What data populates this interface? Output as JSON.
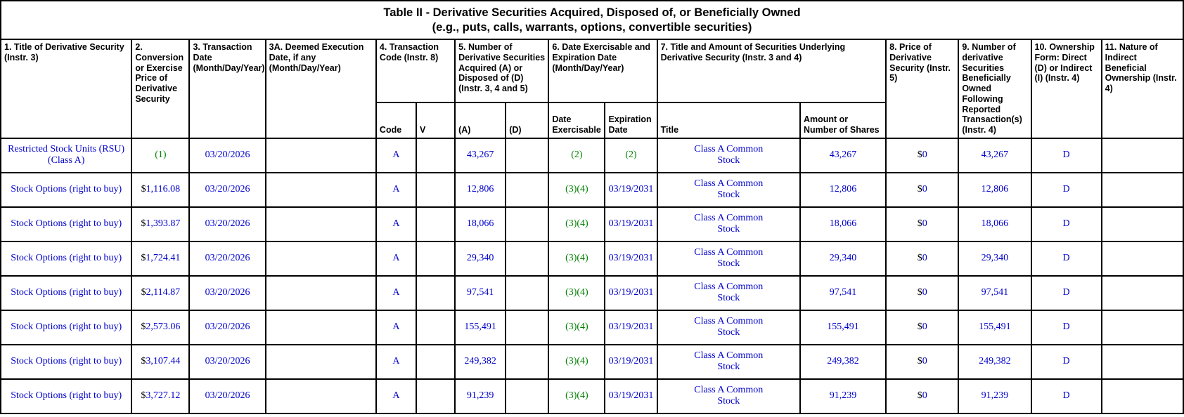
{
  "colors": {
    "data_blue": "#0000CC",
    "footnote_green": "#008000",
    "header_text": "#000000",
    "border": "#000000",
    "background": "#FFFFFF"
  },
  "table": {
    "title_line1": "Table II - Derivative Securities Acquired, Disposed of, or Beneficially Owned",
    "title_line2": "(e.g., puts, calls, warrants, options, convertible securities)",
    "headers": {
      "c1": "1. Title of Derivative Security (Instr. 3)",
      "c2": "2. Conversion or Exercise Price of Derivative Security",
      "c3": "3. Transaction Date (Month/Day/Year)",
      "c3a": "3A. Deemed Execution Date, if any (Month/Day/Year)",
      "c4": "4. Transaction Code (Instr. 8)",
      "c5": "5. Number of Derivative Securities Acquired (A) or Disposed of (D) (Instr. 3, 4 and 5)",
      "c6": "6. Date Exercisable and Expiration Date (Month/Day/Year)",
      "c7": "7. Title and Amount of Securities Underlying Derivative Security (Instr. 3 and 4)",
      "c8": "8. Price of Derivative Security (Instr. 5)",
      "c9": "9. Number of derivative Securities Beneficially Owned Following Reported Transaction(s) (Instr. 4)",
      "c10": "10. Ownership Form: Direct (D) or Indirect (I) (Instr. 4)",
      "c11": "11. Nature of Indirect Beneficial Ownership (Instr. 4)"
    },
    "sub_headers": {
      "code": "Code",
      "v": "V",
      "a": "(A)",
      "d": "(D)",
      "date_exercisable": "Date Exercisable",
      "expiration_date": "Expiration Date",
      "title": "Title",
      "amount": "Amount or Number of Shares"
    },
    "rows": [
      {
        "title": "Restricted Stock Units (RSU) (Class A)",
        "price_dollar": "",
        "price": "(1)",
        "price_cls": "green",
        "transaction_date": "03/20/2026",
        "deemed_execution_date": "",
        "code": "A",
        "v": "",
        "acquired": "43,267",
        "disposed": "",
        "date_exercisable": "(2)",
        "date_exercisable_cls": "green",
        "expiration_date": "(2)",
        "expiration_cls": "green",
        "underlying_title": "Class A Common Stock",
        "underlying_amount": "43,267",
        "derivative_price_dollar": "$",
        "derivative_price": "0",
        "owned_following": "43,267",
        "ownership_form": "D",
        "indirect_nature": ""
      },
      {
        "title": "Stock Options (right to buy)",
        "price_dollar": "$",
        "price": "1,116.08",
        "price_cls": "blue",
        "transaction_date": "03/20/2026",
        "deemed_execution_date": "",
        "code": "A",
        "v": "",
        "acquired": "12,806",
        "disposed": "",
        "date_exercisable": "(3)(4)",
        "date_exercisable_cls": "green",
        "expiration_date": "03/19/2031",
        "expiration_cls": "blue",
        "underlying_title": "Class A Common Stock",
        "underlying_amount": "12,806",
        "derivative_price_dollar": "$",
        "derivative_price": "0",
        "owned_following": "12,806",
        "ownership_form": "D",
        "indirect_nature": ""
      },
      {
        "title": "Stock Options (right to buy)",
        "price_dollar": "$",
        "price": "1,393.87",
        "price_cls": "blue",
        "transaction_date": "03/20/2026",
        "deemed_execution_date": "",
        "code": "A",
        "v": "",
        "acquired": "18,066",
        "disposed": "",
        "date_exercisable": "(3)(4)",
        "date_exercisable_cls": "green",
        "expiration_date": "03/19/2031",
        "expiration_cls": "blue",
        "underlying_title": "Class A Common Stock",
        "underlying_amount": "18,066",
        "derivative_price_dollar": "$",
        "derivative_price": "0",
        "owned_following": "18,066",
        "ownership_form": "D",
        "indirect_nature": ""
      },
      {
        "title": "Stock Options (right to buy)",
        "price_dollar": "$",
        "price": "1,724.41",
        "price_cls": "blue",
        "transaction_date": "03/20/2026",
        "deemed_execution_date": "",
        "code": "A",
        "v": "",
        "acquired": "29,340",
        "disposed": "",
        "date_exercisable": "(3)(4)",
        "date_exercisable_cls": "green",
        "expiration_date": "03/19/2031",
        "expiration_cls": "blue",
        "underlying_title": "Class A Common Stock",
        "underlying_amount": "29,340",
        "derivative_price_dollar": "$",
        "derivative_price": "0",
        "owned_following": "29,340",
        "ownership_form": "D",
        "indirect_nature": ""
      },
      {
        "title": "Stock Options (right to buy)",
        "price_dollar": "$",
        "price": "2,114.87",
        "price_cls": "blue",
        "transaction_date": "03/20/2026",
        "deemed_execution_date": "",
        "code": "A",
        "v": "",
        "acquired": "97,541",
        "disposed": "",
        "date_exercisable": "(3)(4)",
        "date_exercisable_cls": "green",
        "expiration_date": "03/19/2031",
        "expiration_cls": "blue",
        "underlying_title": "Class A Common Stock",
        "underlying_amount": "97,541",
        "derivative_price_dollar": "$",
        "derivative_price": "0",
        "owned_following": "97,541",
        "ownership_form": "D",
        "indirect_nature": ""
      },
      {
        "title": "Stock Options (right to buy)",
        "price_dollar": "$",
        "price": "2,573.06",
        "price_cls": "blue",
        "transaction_date": "03/20/2026",
        "deemed_execution_date": "",
        "code": "A",
        "v": "",
        "acquired": "155,491",
        "disposed": "",
        "date_exercisable": "(3)(4)",
        "date_exercisable_cls": "green",
        "expiration_date": "03/19/2031",
        "expiration_cls": "blue",
        "underlying_title": "Class A Common Stock",
        "underlying_amount": "155,491",
        "derivative_price_dollar": "$",
        "derivative_price": "0",
        "owned_following": "155,491",
        "ownership_form": "D",
        "indirect_nature": ""
      },
      {
        "title": "Stock Options (right to buy)",
        "price_dollar": "$",
        "price": "3,107.44",
        "price_cls": "blue",
        "transaction_date": "03/20/2026",
        "deemed_execution_date": "",
        "code": "A",
        "v": "",
        "acquired": "249,382",
        "disposed": "",
        "date_exercisable": "(3)(4)",
        "date_exercisable_cls": "green",
        "expiration_date": "03/19/2031",
        "expiration_cls": "blue",
        "underlying_title": "Class A Common Stock",
        "underlying_amount": "249,382",
        "derivative_price_dollar": "$",
        "derivative_price": "0",
        "owned_following": "249,382",
        "ownership_form": "D",
        "indirect_nature": ""
      },
      {
        "title": "Stock Options (right to buy)",
        "price_dollar": "$",
        "price": "3,727.12",
        "price_cls": "blue",
        "transaction_date": "03/20/2026",
        "deemed_execution_date": "",
        "code": "A",
        "v": "",
        "acquired": "91,239",
        "disposed": "",
        "date_exercisable": "(3)(4)",
        "date_exercisable_cls": "green",
        "expiration_date": "03/19/2031",
        "expiration_cls": "blue",
        "underlying_title": "Class A Common Stock",
        "underlying_amount": "91,239",
        "derivative_price_dollar": "$",
        "derivative_price": "0",
        "owned_following": "91,239",
        "ownership_form": "D",
        "indirect_nature": ""
      }
    ]
  }
}
